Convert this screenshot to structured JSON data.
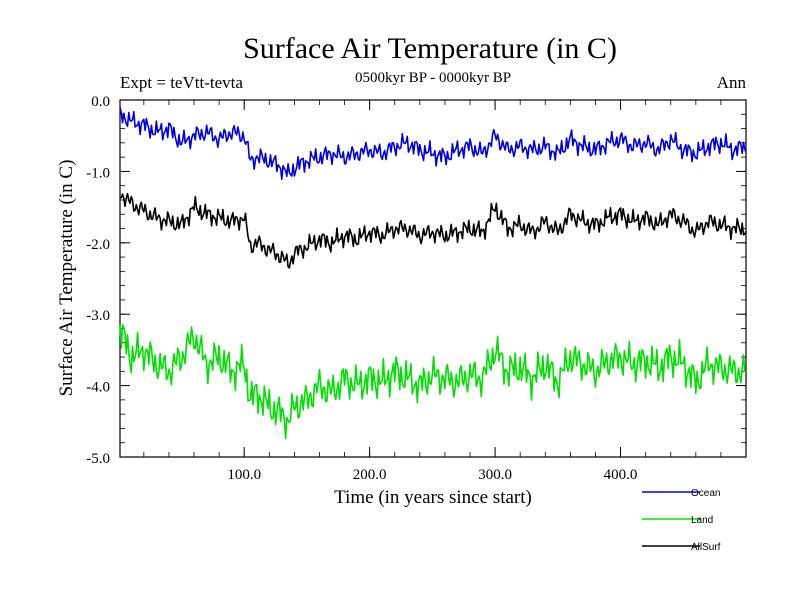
{
  "chart_data": {
    "type": "line",
    "title": "Surface Air Temperature (in C)",
    "subtitle": "0500kyr BP - 0000kyr BP",
    "left_label": "Expt = teVtt-tevta",
    "right_label": "Ann",
    "xlabel": "Time (in years since start)",
    "ylabel": "Surface Air Temperature (in C)",
    "xlim": [
      1,
      500
    ],
    "ylim": [
      -5.0,
      0.0
    ],
    "x_ticks": [
      100,
      200,
      300,
      400
    ],
    "x_tick_labels": [
      "100.0",
      "200.0",
      "300.0",
      "400.0"
    ],
    "y_ticks": [
      0,
      -1,
      -2,
      -3,
      -4,
      -5
    ],
    "y_tick_labels": [
      "0.0",
      "-1.0",
      "-2.0",
      "-3.0",
      "-4.0",
      "-5.0"
    ],
    "series": [
      {
        "name": "Ocean",
        "color": "#0000e0",
        "x": [
          1,
          10,
          20,
          30,
          40,
          50,
          60,
          70,
          80,
          90,
          100,
          105,
          110,
          120,
          130,
          135,
          140,
          150,
          160,
          170,
          180,
          190,
          200,
          210,
          220,
          230,
          240,
          250,
          260,
          270,
          280,
          290,
          300,
          310,
          320,
          330,
          340,
          350,
          360,
          370,
          380,
          390,
          400,
          410,
          420,
          430,
          440,
          450,
          460,
          470,
          480,
          490,
          500
        ],
        "values": [
          -0.2,
          -0.3,
          -0.35,
          -0.45,
          -0.4,
          -0.6,
          -0.5,
          -0.45,
          -0.55,
          -0.45,
          -0.5,
          -0.85,
          -0.8,
          -0.85,
          -0.95,
          -1.05,
          -0.95,
          -0.85,
          -0.8,
          -0.75,
          -0.8,
          -0.75,
          -0.7,
          -0.75,
          -0.65,
          -0.6,
          -0.7,
          -0.75,
          -0.8,
          -0.7,
          -0.65,
          -0.75,
          -0.5,
          -0.7,
          -0.65,
          -0.7,
          -0.65,
          -0.75,
          -0.55,
          -0.65,
          -0.7,
          -0.6,
          -0.55,
          -0.65,
          -0.6,
          -0.7,
          -0.55,
          -0.7,
          -0.75,
          -0.65,
          -0.6,
          -0.7,
          -0.65
        ]
      },
      {
        "name": "Land",
        "color": "#00e000",
        "x": [
          1,
          10,
          20,
          30,
          40,
          50,
          60,
          70,
          80,
          90,
          100,
          105,
          110,
          120,
          130,
          135,
          140,
          150,
          160,
          170,
          180,
          190,
          200,
          210,
          220,
          230,
          240,
          250,
          260,
          270,
          280,
          290,
          300,
          310,
          320,
          330,
          340,
          350,
          360,
          370,
          380,
          390,
          400,
          410,
          420,
          430,
          440,
          450,
          460,
          470,
          480,
          490,
          500
        ],
        "values": [
          -3.2,
          -3.6,
          -3.5,
          -3.7,
          -3.8,
          -3.6,
          -3.3,
          -3.7,
          -3.6,
          -3.8,
          -3.7,
          -4.2,
          -4.1,
          -4.3,
          -4.4,
          -4.5,
          -4.3,
          -4.2,
          -4.0,
          -4.1,
          -3.9,
          -4.0,
          -3.9,
          -3.95,
          -3.8,
          -3.9,
          -4.0,
          -3.85,
          -3.9,
          -3.95,
          -3.85,
          -3.9,
          -3.5,
          -3.8,
          -3.75,
          -3.9,
          -3.7,
          -3.95,
          -3.6,
          -3.7,
          -3.8,
          -3.65,
          -3.6,
          -3.7,
          -3.65,
          -3.75,
          -3.6,
          -3.7,
          -3.95,
          -3.7,
          -3.75,
          -3.8,
          -3.8
        ]
      },
      {
        "name": "AllSurf",
        "color": "#000000",
        "x": [
          1,
          10,
          20,
          30,
          40,
          50,
          60,
          70,
          80,
          90,
          100,
          105,
          110,
          120,
          130,
          135,
          140,
          150,
          160,
          170,
          180,
          190,
          200,
          210,
          220,
          230,
          240,
          250,
          260,
          270,
          280,
          290,
          300,
          310,
          320,
          330,
          340,
          350,
          360,
          370,
          380,
          390,
          400,
          410,
          420,
          430,
          440,
          450,
          460,
          470,
          480,
          490,
          500
        ],
        "values": [
          -1.3,
          -1.45,
          -1.55,
          -1.65,
          -1.7,
          -1.75,
          -1.5,
          -1.6,
          -1.65,
          -1.7,
          -1.65,
          -2.05,
          -2.0,
          -2.1,
          -2.2,
          -2.3,
          -2.15,
          -2.05,
          -1.95,
          -2.0,
          -1.9,
          -1.95,
          -1.85,
          -1.9,
          -1.8,
          -1.8,
          -1.9,
          -1.85,
          -1.9,
          -1.85,
          -1.8,
          -1.85,
          -1.5,
          -1.8,
          -1.75,
          -1.85,
          -1.7,
          -1.85,
          -1.6,
          -1.7,
          -1.75,
          -1.65,
          -1.6,
          -1.7,
          -1.65,
          -1.75,
          -1.6,
          -1.7,
          -1.85,
          -1.7,
          -1.75,
          -1.8,
          -1.8
        ]
      }
    ]
  }
}
